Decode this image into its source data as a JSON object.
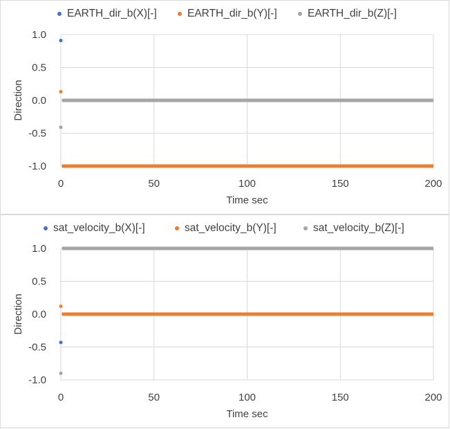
{
  "charts": [
    {
      "legend": [
        {
          "name": "EARTH_dir_b(X)[-]",
          "color": "#4472c4"
        },
        {
          "name": "EARTH_dir_b(Y)[-]",
          "color": "#ed7d31"
        },
        {
          "name": "EARTH_dir_b(Z)[-]",
          "color": "#a5a5a5"
        }
      ],
      "xlabel": "Time sec",
      "ylabel": "Direction",
      "x_ticks": [
        "0",
        "50",
        "100",
        "150",
        "200"
      ],
      "y_ticks": [
        "1.0",
        "0.5",
        "0.0",
        "-0.5",
        "-1.0"
      ]
    },
    {
      "legend": [
        {
          "name": "sat_velocity_b(X)[-]",
          "color": "#4472c4"
        },
        {
          "name": "sat_velocity_b(Y)[-]",
          "color": "#ed7d31"
        },
        {
          "name": "sat_velocity_b(Z)[-]",
          "color": "#a5a5a5"
        }
      ],
      "xlabel": "Time sec",
      "ylabel": "Direction",
      "x_ticks": [
        "0",
        "50",
        "100",
        "150",
        "200"
      ],
      "y_ticks": [
        "1.0",
        "0.5",
        "0.0",
        "-0.5",
        "-1.0"
      ]
    }
  ],
  "chart_data": [
    {
      "type": "scatter",
      "title": "",
      "xlabel": "Time sec",
      "ylabel": "Direction",
      "xlim": [
        0,
        200
      ],
      "ylim": [
        -1.0,
        1.0
      ],
      "x_ticks": [
        0,
        50,
        100,
        150,
        200
      ],
      "y_ticks": [
        -1.0,
        -0.5,
        0.0,
        0.5,
        1.0
      ],
      "grid": true,
      "legend_position": "top",
      "series": [
        {
          "name": "EARTH_dir_b(X)[-]",
          "color": "#4472c4",
          "points": [
            [
              0,
              0.91
            ],
            [
              1,
              -1.0
            ],
            [
              200,
              -1.0
            ]
          ],
          "line_from_x": 1
        },
        {
          "name": "EARTH_dir_b(Y)[-]",
          "color": "#ed7d31",
          "points": [
            [
              0,
              0.13
            ],
            [
              1,
              -1.0
            ],
            [
              200,
              -1.0
            ]
          ],
          "line_from_x": 1
        },
        {
          "name": "EARTH_dir_b(Z)[-]",
          "color": "#a5a5a5",
          "points": [
            [
              0,
              -0.41
            ],
            [
              1,
              0.0
            ],
            [
              200,
              0.0
            ]
          ],
          "line_from_x": 1
        }
      ]
    },
    {
      "type": "scatter",
      "title": "",
      "xlabel": "Time sec",
      "ylabel": "Direction",
      "xlim": [
        0,
        200
      ],
      "ylim": [
        -1.0,
        1.0
      ],
      "x_ticks": [
        0,
        50,
        100,
        150,
        200
      ],
      "y_ticks": [
        -1.0,
        -0.5,
        0.0,
        0.5,
        1.0
      ],
      "grid": true,
      "legend_position": "top",
      "series": [
        {
          "name": "sat_velocity_b(X)[-]",
          "color": "#4472c4",
          "points": [
            [
              0,
              -0.43
            ],
            [
              1,
              0.0
            ],
            [
              200,
              0.0
            ]
          ],
          "line_from_x": 1
        },
        {
          "name": "sat_velocity_b(Y)[-]",
          "color": "#ed7d31",
          "points": [
            [
              0,
              0.12
            ],
            [
              1,
              0.0
            ],
            [
              200,
              0.0
            ]
          ],
          "line_from_x": 1
        },
        {
          "name": "sat_velocity_b(Z)[-]",
          "color": "#a5a5a5",
          "points": [
            [
              0,
              -0.9
            ],
            [
              1,
              1.0
            ],
            [
              200,
              1.0
            ]
          ],
          "line_from_x": 1
        }
      ]
    }
  ]
}
